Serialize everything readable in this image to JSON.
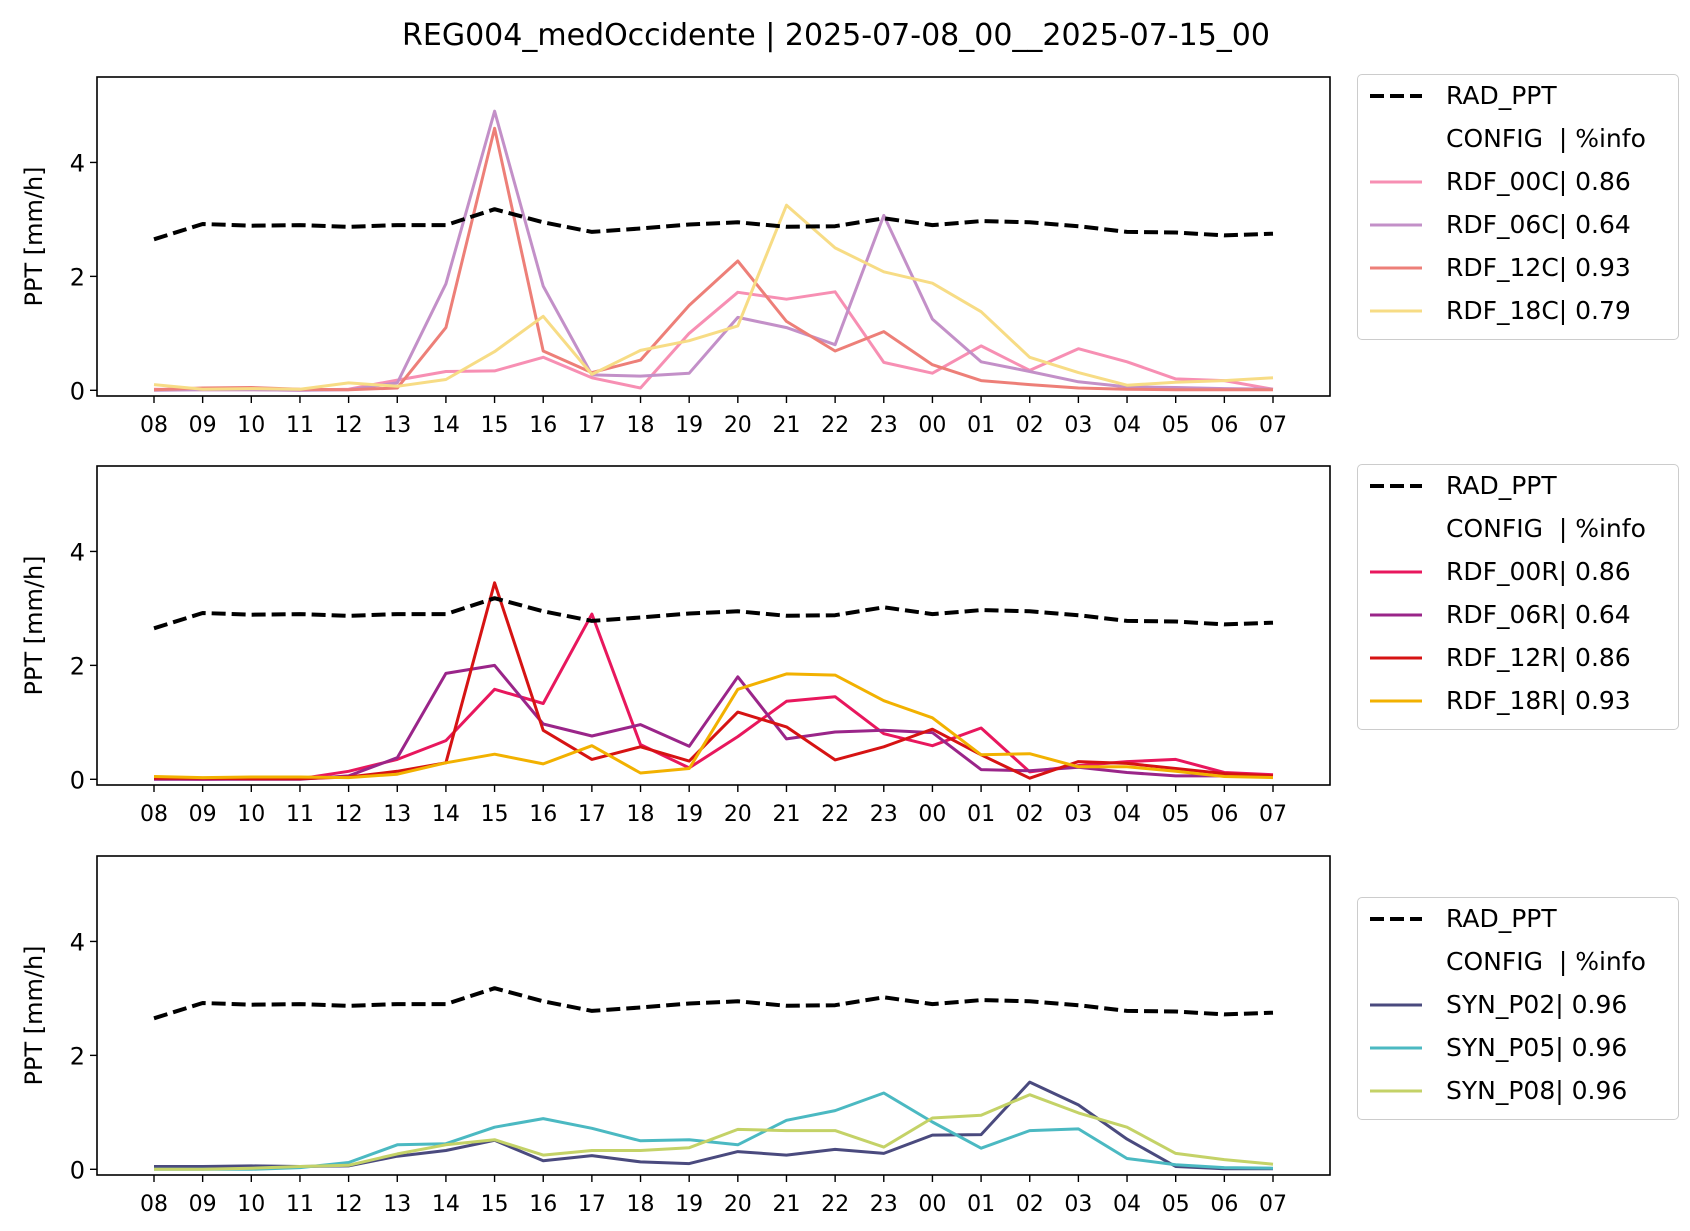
{
  "title": "REG004_medOccidente | 2025-07-08_00__2025-07-15_00",
  "chart_data": [
    {
      "type": "line",
      "ylabel": "PPT [mm/h]",
      "ylim": [
        -0.1,
        5.5
      ],
      "yticks": [
        0,
        2,
        4
      ],
      "categories": [
        "08",
        "09",
        "10",
        "11",
        "12",
        "13",
        "14",
        "15",
        "16",
        "17",
        "18",
        "19",
        "20",
        "21",
        "22",
        "23",
        "00",
        "01",
        "02",
        "03",
        "04",
        "05",
        "06",
        "07"
      ],
      "legend_header": "CONFIG  | %info",
      "series": [
        {
          "name": "RAD_PPT",
          "color": "#000000",
          "style": "dashed",
          "values": [
            2.65,
            2.92,
            2.89,
            2.9,
            2.87,
            2.9,
            2.9,
            3.18,
            2.95,
            2.78,
            2.84,
            2.91,
            2.95,
            2.87,
            2.88,
            3.02,
            2.9,
            2.97,
            2.95,
            2.88,
            2.78,
            2.77,
            2.72,
            2.75
          ]
        },
        {
          "name": "RDF_00C| 0.86",
          "color": "#f78fb3",
          "style": "solid",
          "values": [
            0.02,
            0.01,
            0.01,
            0.0,
            0.02,
            0.18,
            0.33,
            0.34,
            0.58,
            0.22,
            0.04,
            1.0,
            1.72,
            1.6,
            1.73,
            0.49,
            0.3,
            0.78,
            0.35,
            0.73,
            0.5,
            0.2,
            0.17,
            0.02
          ]
        },
        {
          "name": "RDF_06C| 0.64",
          "color": "#c390c8",
          "style": "solid",
          "values": [
            0.0,
            0.01,
            0.01,
            0.0,
            0.01,
            0.13,
            1.87,
            4.9,
            1.83,
            0.27,
            0.25,
            0.3,
            1.28,
            1.1,
            0.8,
            3.07,
            1.25,
            0.5,
            0.33,
            0.15,
            0.06,
            0.05,
            0.03,
            0.02
          ]
        },
        {
          "name": "RDF_12C| 0.93",
          "color": "#ed7f78",
          "style": "solid",
          "values": [
            0.01,
            0.04,
            0.05,
            0.02,
            0.01,
            0.04,
            1.1,
            4.6,
            0.69,
            0.31,
            0.53,
            1.49,
            2.27,
            1.21,
            0.69,
            1.03,
            0.45,
            0.17,
            0.1,
            0.04,
            0.02,
            0.01,
            0.01,
            0.01
          ]
        },
        {
          "name": "RDF_18C| 0.79",
          "color": "#f7dc85",
          "style": "solid",
          "values": [
            0.1,
            0.02,
            0.03,
            0.02,
            0.13,
            0.07,
            0.19,
            0.68,
            1.3,
            0.28,
            0.7,
            0.87,
            1.13,
            3.25,
            2.5,
            2.08,
            1.88,
            1.38,
            0.58,
            0.31,
            0.09,
            0.14,
            0.17,
            0.22
          ]
        }
      ]
    },
    {
      "type": "line",
      "ylabel": "PPT [mm/h]",
      "ylim": [
        -0.1,
        5.5
      ],
      "yticks": [
        0,
        2,
        4
      ],
      "categories": [
        "08",
        "09",
        "10",
        "11",
        "12",
        "13",
        "14",
        "15",
        "16",
        "17",
        "18",
        "19",
        "20",
        "21",
        "22",
        "23",
        "00",
        "01",
        "02",
        "03",
        "04",
        "05",
        "06",
        "07"
      ],
      "legend_header": "CONFIG  | %info",
      "series": [
        {
          "name": "RAD_PPT",
          "color": "#000000",
          "style": "dashed",
          "values": [
            2.65,
            2.92,
            2.89,
            2.9,
            2.87,
            2.9,
            2.9,
            3.18,
            2.95,
            2.78,
            2.84,
            2.91,
            2.95,
            2.87,
            2.88,
            3.02,
            2.9,
            2.97,
            2.95,
            2.88,
            2.78,
            2.77,
            2.72,
            2.75
          ]
        },
        {
          "name": "RDF_00R| 0.86",
          "color": "#e8175d",
          "style": "solid",
          "values": [
            0.01,
            0.0,
            0.01,
            0.01,
            0.14,
            0.35,
            0.68,
            1.58,
            1.33,
            2.9,
            0.61,
            0.2,
            0.75,
            1.37,
            1.45,
            0.8,
            0.59,
            0.9,
            0.13,
            0.24,
            0.31,
            0.35,
            0.12,
            0.08
          ]
        },
        {
          "name": "RDF_06R| 0.64",
          "color": "#9a2589",
          "style": "solid",
          "values": [
            0.0,
            0.0,
            0.0,
            0.0,
            0.06,
            0.38,
            1.86,
            2.0,
            0.97,
            0.76,
            0.96,
            0.58,
            1.8,
            0.71,
            0.83,
            0.86,
            0.82,
            0.17,
            0.15,
            0.21,
            0.12,
            0.06,
            0.06,
            0.05
          ]
        },
        {
          "name": "RDF_12R| 0.86",
          "color": "#d61313",
          "style": "solid",
          "values": [
            0.02,
            0.02,
            0.01,
            0.01,
            0.04,
            0.14,
            0.29,
            3.45,
            0.86,
            0.35,
            0.57,
            0.32,
            1.18,
            0.92,
            0.34,
            0.57,
            0.88,
            0.43,
            0.02,
            0.31,
            0.28,
            0.19,
            0.1,
            0.06
          ]
        },
        {
          "name": "RDF_18R| 0.93",
          "color": "#f2b100",
          "style": "solid",
          "values": [
            0.05,
            0.03,
            0.04,
            0.04,
            0.03,
            0.09,
            0.29,
            0.44,
            0.27,
            0.59,
            0.11,
            0.19,
            1.58,
            1.85,
            1.83,
            1.38,
            1.08,
            0.43,
            0.45,
            0.22,
            0.22,
            0.14,
            0.05,
            0.03
          ]
        }
      ]
    },
    {
      "type": "line",
      "ylabel": "PPT [mm/h]",
      "ylim": [
        -0.1,
        5.5
      ],
      "yticks": [
        0,
        2,
        4
      ],
      "categories": [
        "08",
        "09",
        "10",
        "11",
        "12",
        "13",
        "14",
        "15",
        "16",
        "17",
        "18",
        "19",
        "20",
        "21",
        "22",
        "23",
        "00",
        "01",
        "02",
        "03",
        "04",
        "05",
        "06",
        "07"
      ],
      "legend_header": "CONFIG  | %info",
      "series": [
        {
          "name": "RAD_PPT",
          "color": "#000000",
          "style": "dashed",
          "values": [
            2.65,
            2.92,
            2.89,
            2.9,
            2.87,
            2.9,
            2.9,
            3.18,
            2.95,
            2.78,
            2.84,
            2.91,
            2.95,
            2.87,
            2.88,
            3.02,
            2.9,
            2.97,
            2.95,
            2.88,
            2.78,
            2.77,
            2.72,
            2.75
          ]
        },
        {
          "name": "SYN_P02| 0.96",
          "color": "#4a4a7e",
          "style": "solid",
          "values": [
            0.05,
            0.05,
            0.06,
            0.05,
            0.06,
            0.23,
            0.33,
            0.51,
            0.15,
            0.24,
            0.13,
            0.1,
            0.31,
            0.25,
            0.35,
            0.28,
            0.6,
            0.61,
            1.53,
            1.13,
            0.53,
            0.05,
            0.01,
            0.01
          ]
        },
        {
          "name": "SYN_P05| 0.96",
          "color": "#4bb9c2",
          "style": "solid",
          "values": [
            0.0,
            0.0,
            0.0,
            0.03,
            0.12,
            0.43,
            0.45,
            0.74,
            0.89,
            0.72,
            0.5,
            0.52,
            0.43,
            0.86,
            1.03,
            1.34,
            0.83,
            0.37,
            0.68,
            0.71,
            0.19,
            0.08,
            0.03,
            0.02
          ]
        },
        {
          "name": "SYN_P08| 0.96",
          "color": "#c4d267",
          "style": "solid",
          "values": [
            0.0,
            0.0,
            0.02,
            0.05,
            0.07,
            0.27,
            0.43,
            0.52,
            0.25,
            0.33,
            0.33,
            0.38,
            0.7,
            0.68,
            0.68,
            0.39,
            0.9,
            0.95,
            1.31,
            0.99,
            0.74,
            0.28,
            0.17,
            0.09
          ]
        }
      ]
    }
  ]
}
